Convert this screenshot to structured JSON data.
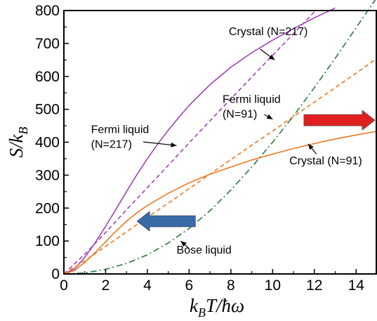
{
  "chart_data": {
    "type": "line",
    "xlabel": "k_B T/ħω",
    "ylabel": "S/k_B",
    "xlim": [
      0,
      15
    ],
    "ylim": [
      0,
      800
    ],
    "x_ticks": [
      0,
      2,
      4,
      6,
      8,
      10,
      12,
      14
    ],
    "y_ticks": [
      0,
      100,
      200,
      300,
      400,
      500,
      600,
      700,
      800
    ],
    "grid": false,
    "legend": "none",
    "series": [
      {
        "name": "Crystal (N=217)",
        "color": "#a040b8",
        "dash": "solid",
        "x": [
          0,
          0.5,
          1,
          1.5,
          2,
          2.5,
          3,
          3.5,
          4,
          4.5,
          5,
          5.5,
          6,
          7,
          8,
          9,
          10,
          11,
          12,
          13
        ],
        "y": [
          0,
          15,
          50,
          95,
          145,
          197,
          250,
          302,
          350,
          395,
          437,
          475,
          512,
          575,
          628,
          672,
          710,
          745,
          778,
          808
        ]
      },
      {
        "name": "Fermi liquid (N=217)",
        "color": "#a040b8",
        "dash": "dashed",
        "x": [
          0,
          1,
          2,
          3,
          4,
          5,
          6,
          7,
          8,
          9,
          10,
          11,
          12
        ],
        "y": [
          0,
          60,
          126,
          195,
          262,
          330,
          398,
          465,
          532,
          598,
          664,
          730,
          796
        ]
      },
      {
        "name": "Crystal (N=91)",
        "color": "#f07820",
        "dash": "solid",
        "x": [
          0,
          0.5,
          1,
          1.5,
          2,
          2.5,
          3,
          3.5,
          4,
          5,
          6,
          7,
          8,
          9,
          10,
          11,
          12,
          13,
          14,
          15
        ],
        "y": [
          0,
          10,
          35,
          65,
          98,
          130,
          160,
          186,
          208,
          245,
          277,
          303,
          325,
          346,
          364,
          381,
          396,
          410,
          422,
          433
        ]
      },
      {
        "name": "Fermi liquid (N=91)",
        "color": "#f07820",
        "dash": "dashed",
        "x": [
          0,
          1,
          2,
          3,
          4,
          5,
          6,
          7,
          8,
          9,
          10,
          11,
          12,
          13,
          14,
          15
        ],
        "y": [
          0,
          40,
          84,
          128,
          172,
          215,
          259,
          303,
          347,
          391,
          434,
          478,
          522,
          566,
          610,
          655
        ]
      },
      {
        "name": "Bose liquid",
        "color": "#2a7a3a",
        "dash": "dashdot",
        "x": [
          0,
          1,
          2,
          3,
          4,
          5,
          6,
          7,
          8,
          9,
          10,
          11,
          12,
          13,
          14,
          15
        ],
        "y": [
          0,
          3,
          14,
          32,
          58,
          94,
          138,
          192,
          255,
          325,
          400,
          480,
          566,
          655,
          748,
          840
        ]
      }
    ],
    "annotations": [
      {
        "text": "Crystal (N=217)",
        "x": 7.9,
        "y": 725
      },
      {
        "text": "Fermi liquid",
        "x": 1.3,
        "y": 428
      },
      {
        "text": "(N=217)",
        "x": 1.3,
        "y": 383
      },
      {
        "text": "Fermi liquid",
        "x": 7.6,
        "y": 520
      },
      {
        "text": "(N=91)",
        "x": 7.6,
        "y": 475
      },
      {
        "text": "Crystal (N=91)",
        "x": 10.8,
        "y": 333
      },
      {
        "text": "Bose liquid",
        "x": 5.4,
        "y": 62
      }
    ],
    "annotation_arrows": [
      {
        "from": [
          9.4,
          683
        ],
        "to": [
          10.1,
          650
        ]
      },
      {
        "from": [
          3.8,
          401
        ],
        "to": [
          5.4,
          390
        ]
      },
      {
        "from": [
          9.6,
          484
        ],
        "to": [
          10.0,
          470
        ]
      },
      {
        "from": [
          12.1,
          364
        ],
        "to": [
          11.7,
          395
        ]
      },
      {
        "from": [
          6.0,
          77
        ],
        "to": [
          5.6,
          100
        ]
      }
    ],
    "block_arrows": [
      {
        "direction": "right",
        "color": "#e02020",
        "x0": 11.5,
        "x1": 14.9,
        "y": 467
      },
      {
        "direction": "left",
        "color": "#3a6aa8",
        "x0": 6.3,
        "x1": 3.5,
        "y": 160
      }
    ]
  }
}
